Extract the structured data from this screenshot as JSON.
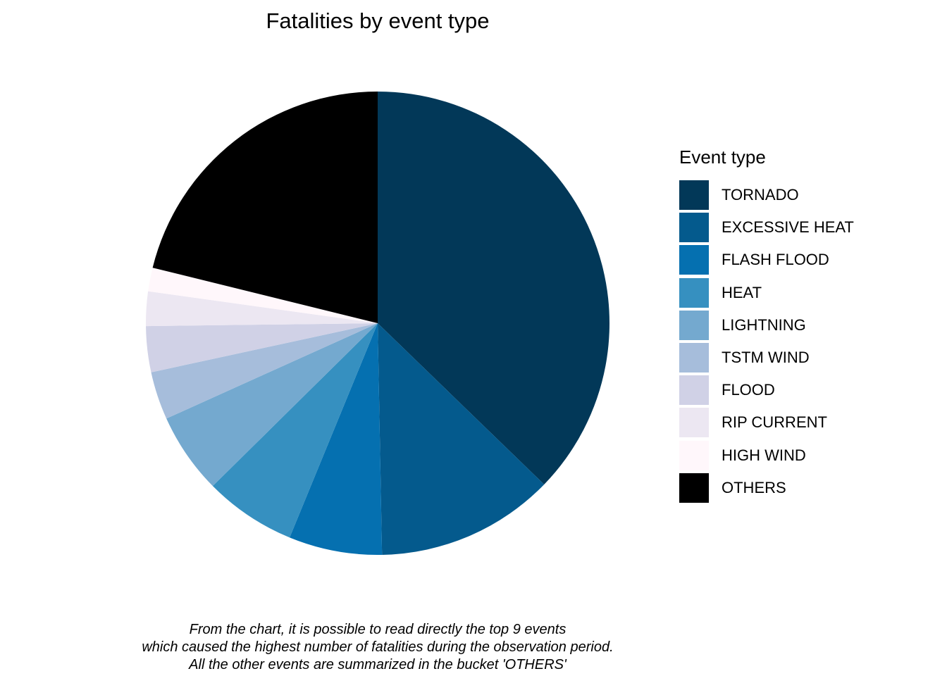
{
  "chart_data": {
    "type": "pie",
    "title": "Fatalities by event type",
    "legend": {
      "title": "Event type",
      "position": "right"
    },
    "slices": [
      {
        "label": "TORNADO",
        "share": 0.3725,
        "color": "#023858"
      },
      {
        "label": "EXCESSIVE HEAT",
        "share": 0.1245,
        "color": "#045A8D"
      },
      {
        "label": "FLASH FLOOD",
        "share": 0.065,
        "color": "#0570B0"
      },
      {
        "label": "HEAT",
        "share": 0.064,
        "color": "#3690C0"
      },
      {
        "label": "LIGHTNING",
        "share": 0.0565,
        "color": "#74A9CF"
      },
      {
        "label": "TSTM WIND",
        "share": 0.0335,
        "color": "#A6BDDB"
      },
      {
        "label": "FLOOD",
        "share": 0.032,
        "color": "#D0D1E6"
      },
      {
        "label": "RIP CURRENT",
        "share": 0.024,
        "color": "#ECE7F2"
      },
      {
        "label": "HIGH WIND",
        "share": 0.0165,
        "color": "#FFF7FB"
      },
      {
        "label": "OTHERS",
        "share": 0.2115,
        "color": "#000000"
      }
    ],
    "caption": [
      "From the chart, it is possible to read directly the top 9 events",
      "which caused the highest number of fatalities during the observation period.",
      "All the other events are summarized in the bucket 'OTHERS'"
    ]
  }
}
